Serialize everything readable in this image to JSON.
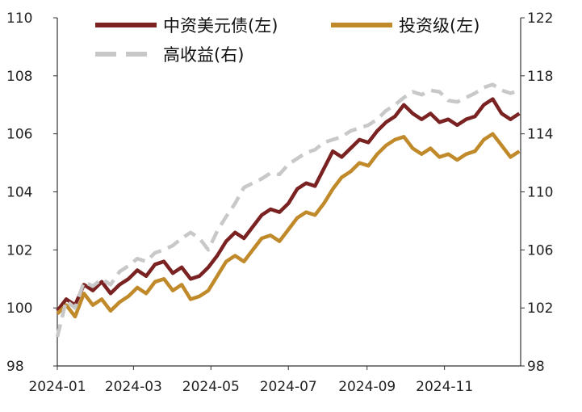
{
  "chart_data": {
    "type": "line",
    "x_axis": {
      "type": "date",
      "range": [
        "2024-01-01",
        "2024-12-31"
      ],
      "tick_labels": [
        "2024-01",
        "2024-03",
        "2024-05",
        "2024-07",
        "2024-09",
        "2024-11"
      ]
    },
    "y_left": {
      "range": [
        98,
        110
      ],
      "ticks": [
        "98",
        "100",
        "102",
        "104",
        "106",
        "108",
        "110"
      ]
    },
    "y_right": {
      "range": [
        98,
        122
      ],
      "ticks": [
        "98",
        "102",
        "106",
        "110",
        "114",
        "118",
        "122"
      ]
    },
    "grid": false,
    "legend": {
      "placement": "top",
      "items": [
        "中资美元债(左)",
        "投资级(左)",
        "高收益(右)"
      ]
    },
    "series": [
      {
        "name": "中资美元债(左)",
        "axis": "left",
        "color": "#7a2222",
        "style": "solid",
        "points": [
          [
            "2024-01-01",
            99.9
          ],
          [
            "2024-01-08",
            100.3
          ],
          [
            "2024-01-15",
            100.1
          ],
          [
            "2024-01-22",
            100.8
          ],
          [
            "2024-01-29",
            100.6
          ],
          [
            "2024-02-05",
            100.9
          ],
          [
            "2024-02-12",
            100.5
          ],
          [
            "2024-02-19",
            100.8
          ],
          [
            "2024-02-26",
            101.0
          ],
          [
            "2024-03-04",
            101.3
          ],
          [
            "2024-03-11",
            101.1
          ],
          [
            "2024-03-18",
            101.5
          ],
          [
            "2024-03-25",
            101.6
          ],
          [
            "2024-04-01",
            101.2
          ],
          [
            "2024-04-08",
            101.4
          ],
          [
            "2024-04-15",
            101.0
          ],
          [
            "2024-04-22",
            101.1
          ],
          [
            "2024-04-29",
            101.4
          ],
          [
            "2024-05-06",
            101.8
          ],
          [
            "2024-05-13",
            102.3
          ],
          [
            "2024-05-20",
            102.6
          ],
          [
            "2024-05-27",
            102.4
          ],
          [
            "2024-06-03",
            102.8
          ],
          [
            "2024-06-10",
            103.2
          ],
          [
            "2024-06-17",
            103.4
          ],
          [
            "2024-06-24",
            103.3
          ],
          [
            "2024-07-01",
            103.6
          ],
          [
            "2024-07-08",
            104.1
          ],
          [
            "2024-07-15",
            104.3
          ],
          [
            "2024-07-22",
            104.2
          ],
          [
            "2024-07-29",
            104.8
          ],
          [
            "2024-08-05",
            105.4
          ],
          [
            "2024-08-12",
            105.2
          ],
          [
            "2024-08-19",
            105.5
          ],
          [
            "2024-08-26",
            105.8
          ],
          [
            "2024-09-02",
            105.7
          ],
          [
            "2024-09-09",
            106.1
          ],
          [
            "2024-09-16",
            106.4
          ],
          [
            "2024-09-23",
            106.6
          ],
          [
            "2024-09-30",
            107.0
          ],
          [
            "2024-10-07",
            106.7
          ],
          [
            "2024-10-14",
            106.5
          ],
          [
            "2024-10-21",
            106.7
          ],
          [
            "2024-10-28",
            106.4
          ],
          [
            "2024-11-04",
            106.5
          ],
          [
            "2024-11-11",
            106.3
          ],
          [
            "2024-11-18",
            106.5
          ],
          [
            "2024-11-25",
            106.6
          ],
          [
            "2024-12-02",
            107.0
          ],
          [
            "2024-12-09",
            107.2
          ],
          [
            "2024-12-16",
            106.7
          ],
          [
            "2024-12-23",
            106.5
          ],
          [
            "2024-12-30",
            106.7
          ]
        ]
      },
      {
        "name": "投资级(左)",
        "axis": "left",
        "color": "#c08a2a",
        "style": "solid",
        "points": [
          [
            "2024-01-01",
            99.8
          ],
          [
            "2024-01-08",
            100.1
          ],
          [
            "2024-01-15",
            99.7
          ],
          [
            "2024-01-22",
            100.5
          ],
          [
            "2024-01-29",
            100.1
          ],
          [
            "2024-02-05",
            100.3
          ],
          [
            "2024-02-12",
            99.9
          ],
          [
            "2024-02-19",
            100.2
          ],
          [
            "2024-02-26",
            100.4
          ],
          [
            "2024-03-04",
            100.7
          ],
          [
            "2024-03-11",
            100.5
          ],
          [
            "2024-03-18",
            100.9
          ],
          [
            "2024-03-25",
            101.0
          ],
          [
            "2024-04-01",
            100.6
          ],
          [
            "2024-04-08",
            100.8
          ],
          [
            "2024-04-15",
            100.3
          ],
          [
            "2024-04-22",
            100.4
          ],
          [
            "2024-04-29",
            100.6
          ],
          [
            "2024-05-06",
            101.1
          ],
          [
            "2024-05-13",
            101.6
          ],
          [
            "2024-05-20",
            101.8
          ],
          [
            "2024-05-27",
            101.6
          ],
          [
            "2024-06-03",
            102.0
          ],
          [
            "2024-06-10",
            102.4
          ],
          [
            "2024-06-17",
            102.5
          ],
          [
            "2024-06-24",
            102.3
          ],
          [
            "2024-07-01",
            102.7
          ],
          [
            "2024-07-08",
            103.1
          ],
          [
            "2024-07-15",
            103.3
          ],
          [
            "2024-07-22",
            103.2
          ],
          [
            "2024-07-29",
            103.6
          ],
          [
            "2024-08-05",
            104.1
          ],
          [
            "2024-08-12",
            104.5
          ],
          [
            "2024-08-19",
            104.7
          ],
          [
            "2024-08-26",
            105.0
          ],
          [
            "2024-09-02",
            104.9
          ],
          [
            "2024-09-09",
            105.3
          ],
          [
            "2024-09-16",
            105.6
          ],
          [
            "2024-09-23",
            105.8
          ],
          [
            "2024-09-30",
            105.9
          ],
          [
            "2024-10-07",
            105.5
          ],
          [
            "2024-10-14",
            105.3
          ],
          [
            "2024-10-21",
            105.5
          ],
          [
            "2024-10-28",
            105.2
          ],
          [
            "2024-11-04",
            105.3
          ],
          [
            "2024-11-11",
            105.1
          ],
          [
            "2024-11-18",
            105.3
          ],
          [
            "2024-11-25",
            105.4
          ],
          [
            "2024-12-02",
            105.8
          ],
          [
            "2024-12-09",
            106.0
          ],
          [
            "2024-12-16",
            105.6
          ],
          [
            "2024-12-23",
            105.2
          ],
          [
            "2024-12-30",
            105.4
          ]
        ]
      },
      {
        "name": "高收益(右)",
        "axis": "right",
        "color": "#c8c8c8",
        "style": "dashed",
        "points": [
          [
            "2024-01-01",
            100.0
          ],
          [
            "2024-01-08",
            102.5
          ],
          [
            "2024-01-15",
            102.0
          ],
          [
            "2024-01-22",
            103.8
          ],
          [
            "2024-01-29",
            103.5
          ],
          [
            "2024-02-05",
            104.0
          ],
          [
            "2024-02-12",
            103.6
          ],
          [
            "2024-02-19",
            104.5
          ],
          [
            "2024-02-26",
            104.9
          ],
          [
            "2024-03-04",
            105.4
          ],
          [
            "2024-03-11",
            105.2
          ],
          [
            "2024-03-18",
            105.8
          ],
          [
            "2024-03-25",
            106.0
          ],
          [
            "2024-04-01",
            106.3
          ],
          [
            "2024-04-08",
            106.8
          ],
          [
            "2024-04-15",
            107.2
          ],
          [
            "2024-04-22",
            106.8
          ],
          [
            "2024-04-29",
            106.0
          ],
          [
            "2024-05-06",
            107.3
          ],
          [
            "2024-05-13",
            108.3
          ],
          [
            "2024-05-20",
            109.2
          ],
          [
            "2024-05-27",
            110.3
          ],
          [
            "2024-06-03",
            110.6
          ],
          [
            "2024-06-10",
            110.9
          ],
          [
            "2024-06-17",
            111.3
          ],
          [
            "2024-06-24",
            111.2
          ],
          [
            "2024-07-01",
            111.9
          ],
          [
            "2024-07-08",
            112.3
          ],
          [
            "2024-07-15",
            112.7
          ],
          [
            "2024-07-22",
            112.9
          ],
          [
            "2024-07-29",
            113.4
          ],
          [
            "2024-08-05",
            113.6
          ],
          [
            "2024-08-12",
            113.8
          ],
          [
            "2024-08-19",
            114.2
          ],
          [
            "2024-08-26",
            114.4
          ],
          [
            "2024-09-02",
            114.6
          ],
          [
            "2024-09-09",
            115.0
          ],
          [
            "2024-09-16",
            115.6
          ],
          [
            "2024-09-23",
            116.0
          ],
          [
            "2024-09-30",
            116.5
          ],
          [
            "2024-10-07",
            116.9
          ],
          [
            "2024-10-14",
            116.7
          ],
          [
            "2024-10-21",
            117.0
          ],
          [
            "2024-10-28",
            116.9
          ],
          [
            "2024-11-04",
            116.3
          ],
          [
            "2024-11-11",
            116.2
          ],
          [
            "2024-11-18",
            116.5
          ],
          [
            "2024-11-25",
            116.8
          ],
          [
            "2024-12-02",
            117.2
          ],
          [
            "2024-12-09",
            117.4
          ],
          [
            "2024-12-16",
            117.0
          ],
          [
            "2024-12-23",
            116.8
          ],
          [
            "2024-12-30",
            117.0
          ]
        ]
      }
    ]
  }
}
